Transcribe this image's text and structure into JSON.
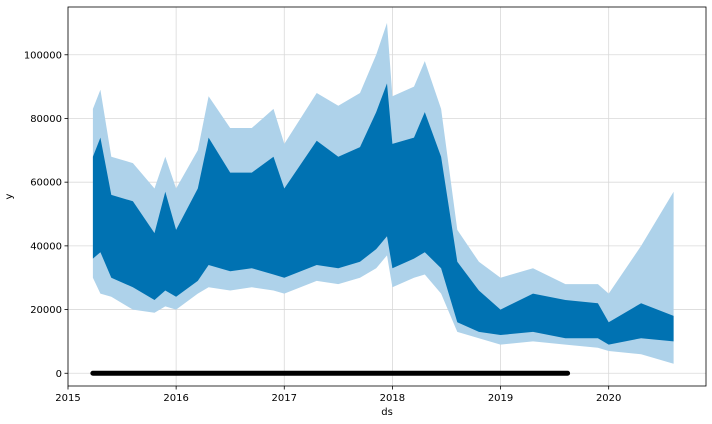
{
  "chart_data": {
    "type": "line",
    "title": "",
    "xlabel": "ds",
    "ylabel": "y",
    "xlim": [
      2015.0,
      2020.9
    ],
    "ylim": [
      -4000,
      115000
    ],
    "grid": true,
    "legend": "none",
    "x_ticks": [
      {
        "value": 2015,
        "label": "2015"
      },
      {
        "value": 2016,
        "label": "2016"
      },
      {
        "value": 2017,
        "label": "2017"
      },
      {
        "value": 2018,
        "label": "2018"
      },
      {
        "value": 2019,
        "label": "2019"
      },
      {
        "value": 2020,
        "label": "2020"
      }
    ],
    "y_ticks": [
      {
        "value": 0,
        "label": "0"
      },
      {
        "value": 20000,
        "label": "20000"
      },
      {
        "value": 40000,
        "label": "40000"
      },
      {
        "value": 60000,
        "label": "60000"
      },
      {
        "value": 80000,
        "label": "80000"
      },
      {
        "value": 100000,
        "label": "100000"
      }
    ],
    "colors": {
      "forecast": "#0072B2",
      "interval": "#aed2ea",
      "observed": "#000000",
      "grid": "#d9d9d9"
    },
    "series": [
      {
        "role": "uncertainty_interval",
        "x": [
          2015.23,
          2015.3,
          2015.4,
          2015.6,
          2015.8,
          2015.9,
          2016.0,
          2016.2,
          2016.3,
          2016.5,
          2016.7,
          2016.9,
          2017.0,
          2017.3,
          2017.5,
          2017.7,
          2017.85,
          2017.95,
          2018.0,
          2018.2,
          2018.3,
          2018.45,
          2018.6,
          2018.8,
          2019.0,
          2019.3,
          2019.6,
          2019.9,
          2020.0,
          2020.3,
          2020.6
        ],
        "upper": [
          83000,
          89000,
          68000,
          66000,
          58000,
          68000,
          58000,
          70000,
          87000,
          77000,
          77000,
          83000,
          72000,
          88000,
          84000,
          88000,
          100000,
          110000,
          87000,
          90000,
          98000,
          83000,
          45000,
          35000,
          30000,
          33000,
          28000,
          28000,
          25000,
          40000,
          57000
        ],
        "lower": [
          30000,
          25000,
          24000,
          20000,
          19000,
          21000,
          20000,
          25000,
          27000,
          26000,
          27000,
          26000,
          25000,
          29000,
          28000,
          30000,
          33000,
          37000,
          27000,
          30000,
          31000,
          25000,
          13000,
          11000,
          9000,
          10000,
          9000,
          8000,
          7000,
          6000,
          3000
        ]
      },
      {
        "role": "forecast_band",
        "x": [
          2015.23,
          2015.3,
          2015.4,
          2015.6,
          2015.8,
          2015.9,
          2016.0,
          2016.2,
          2016.3,
          2016.5,
          2016.7,
          2016.9,
          2017.0,
          2017.3,
          2017.5,
          2017.7,
          2017.85,
          2017.95,
          2018.0,
          2018.2,
          2018.3,
          2018.45,
          2018.6,
          2018.8,
          2019.0,
          2019.3,
          2019.6,
          2019.9,
          2020.0,
          2020.3,
          2020.6
        ],
        "upper": [
          68000,
          74000,
          56000,
          54000,
          44000,
          57000,
          45000,
          58000,
          74000,
          63000,
          63000,
          68000,
          58000,
          73000,
          68000,
          71000,
          82000,
          91000,
          72000,
          74000,
          82000,
          68000,
          35000,
          26000,
          20000,
          25000,
          23000,
          22000,
          16000,
          22000,
          18000
        ],
        "lower": [
          36000,
          38000,
          30000,
          27000,
          23000,
          26000,
          24000,
          29000,
          34000,
          32000,
          33000,
          31000,
          30000,
          34000,
          33000,
          35000,
          39000,
          43000,
          33000,
          36000,
          38000,
          33000,
          16000,
          13000,
          12000,
          13000,
          11000,
          11000,
          9000,
          11000,
          10000
        ]
      },
      {
        "role": "observed",
        "x_start": 2015.23,
        "x_end": 2019.62,
        "y": [
          0
        ]
      }
    ]
  }
}
